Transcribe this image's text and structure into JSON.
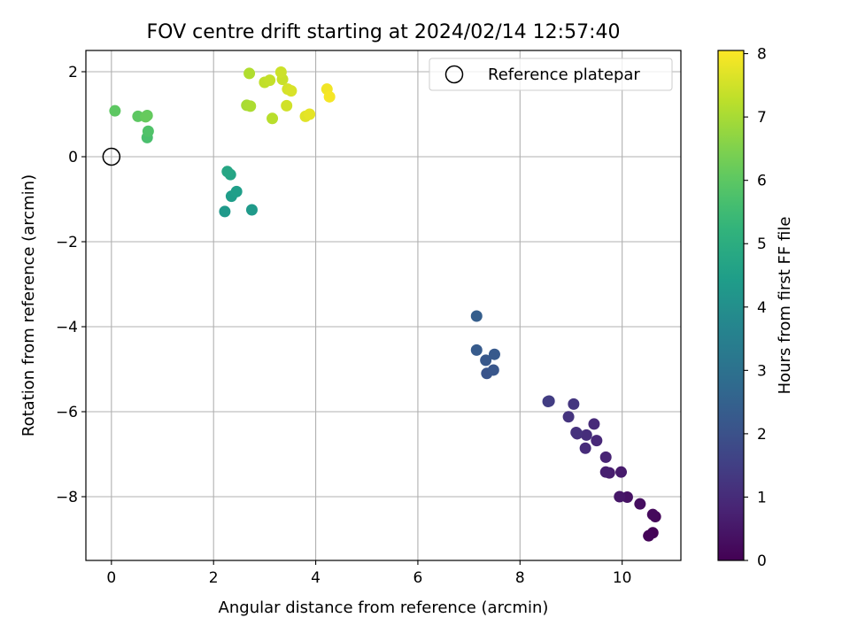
{
  "chart_data": {
    "type": "scatter",
    "title": "FOV centre drift starting at 2024/02/14 12:57:40",
    "xlabel": "Angular distance from reference (arcmin)",
    "ylabel": "Rotation from reference (arcmin)",
    "xlim": [
      -0.5,
      11.15
    ],
    "ylim": [
      -9.5,
      2.5
    ],
    "xticks": [
      0,
      2,
      4,
      6,
      8,
      10
    ],
    "yticks": [
      -8,
      -6,
      -4,
      -2,
      0,
      2
    ],
    "grid": true,
    "legend": {
      "position": "top-right",
      "entries": [
        "Reference platepar"
      ]
    },
    "reference_point": {
      "name": "Reference platepar",
      "x": 0,
      "y": 0,
      "marker": "open-circle"
    },
    "colorbar": {
      "label": "Hours from first FF file",
      "range": [
        0,
        8.05
      ],
      "ticks": [
        0,
        1,
        2,
        3,
        4,
        5,
        6,
        7,
        8
      ],
      "colormap": "viridis"
    },
    "points": [
      {
        "x": 10.6,
        "y": -8.85,
        "c": 0.05
      },
      {
        "x": 10.52,
        "y": -8.92,
        "c": 0.1
      },
      {
        "x": 10.65,
        "y": -8.47,
        "c": 0.15
      },
      {
        "x": 10.6,
        "y": -8.42,
        "c": 0.2
      },
      {
        "x": 10.35,
        "y": -8.17,
        "c": 0.3
      },
      {
        "x": 10.1,
        "y": -8.01,
        "c": 0.4
      },
      {
        "x": 9.95,
        "y": -8.0,
        "c": 0.5
      },
      {
        "x": 9.98,
        "y": -7.42,
        "c": 0.6
      },
      {
        "x": 9.75,
        "y": -7.44,
        "c": 0.65
      },
      {
        "x": 9.68,
        "y": -7.42,
        "c": 0.7
      },
      {
        "x": 9.68,
        "y": -7.07,
        "c": 0.8
      },
      {
        "x": 9.5,
        "y": -6.68,
        "c": 0.9
      },
      {
        "x": 9.45,
        "y": -6.29,
        "c": 0.95
      },
      {
        "x": 9.28,
        "y": -6.86,
        "c": 1.0
      },
      {
        "x": 9.3,
        "y": -6.55,
        "c": 1.05
      },
      {
        "x": 9.12,
        "y": -6.52,
        "c": 1.1
      },
      {
        "x": 9.1,
        "y": -6.49,
        "c": 1.15
      },
      {
        "x": 8.95,
        "y": -6.12,
        "c": 1.2
      },
      {
        "x": 9.05,
        "y": -5.82,
        "c": 1.25
      },
      {
        "x": 8.57,
        "y": -5.75,
        "c": 1.4
      },
      {
        "x": 8.55,
        "y": -5.76,
        "c": 1.45
      },
      {
        "x": 7.35,
        "y": -5.1,
        "c": 2.1
      },
      {
        "x": 7.48,
        "y": -5.02,
        "c": 2.15
      },
      {
        "x": 7.33,
        "y": -4.79,
        "c": 2.2
      },
      {
        "x": 7.5,
        "y": -4.65,
        "c": 2.25
      },
      {
        "x": 7.15,
        "y": -4.55,
        "c": 2.3
      },
      {
        "x": 7.15,
        "y": -3.75,
        "c": 2.4
      },
      {
        "x": 2.22,
        "y": -1.29,
        "c": 4.3
      },
      {
        "x": 2.75,
        "y": -1.25,
        "c": 4.35
      },
      {
        "x": 2.35,
        "y": -0.93,
        "c": 4.45
      },
      {
        "x": 2.45,
        "y": -0.82,
        "c": 4.5
      },
      {
        "x": 2.33,
        "y": -0.42,
        "c": 4.7
      },
      {
        "x": 2.27,
        "y": -0.35,
        "c": 4.75
      },
      {
        "x": 0.7,
        "y": 0.45,
        "c": 5.7
      },
      {
        "x": 0.72,
        "y": 0.6,
        "c": 5.8
      },
      {
        "x": 0.52,
        "y": 0.95,
        "c": 6.0
      },
      {
        "x": 0.7,
        "y": 0.97,
        "c": 6.1
      },
      {
        "x": 0.67,
        "y": 0.94,
        "c": 6.15
      },
      {
        "x": 0.07,
        "y": 1.08,
        "c": 6.0
      },
      {
        "x": 2.65,
        "y": 1.21,
        "c": 7.0
      },
      {
        "x": 2.72,
        "y": 1.19,
        "c": 7.05
      },
      {
        "x": 2.7,
        "y": 1.96,
        "c": 7.1
      },
      {
        "x": 3.15,
        "y": 0.9,
        "c": 7.2
      },
      {
        "x": 3.0,
        "y": 1.75,
        "c": 7.3
      },
      {
        "x": 3.1,
        "y": 1.8,
        "c": 7.35
      },
      {
        "x": 3.35,
        "y": 1.82,
        "c": 7.4
      },
      {
        "x": 3.32,
        "y": 1.99,
        "c": 7.45
      },
      {
        "x": 3.43,
        "y": 1.2,
        "c": 7.5
      },
      {
        "x": 3.45,
        "y": 1.59,
        "c": 7.55
      },
      {
        "x": 3.52,
        "y": 1.55,
        "c": 7.6
      },
      {
        "x": 3.8,
        "y": 0.95,
        "c": 7.7
      },
      {
        "x": 3.88,
        "y": 1.0,
        "c": 7.75
      },
      {
        "x": 4.22,
        "y": 1.59,
        "c": 7.9
      },
      {
        "x": 4.27,
        "y": 1.41,
        "c": 7.95
      }
    ]
  }
}
